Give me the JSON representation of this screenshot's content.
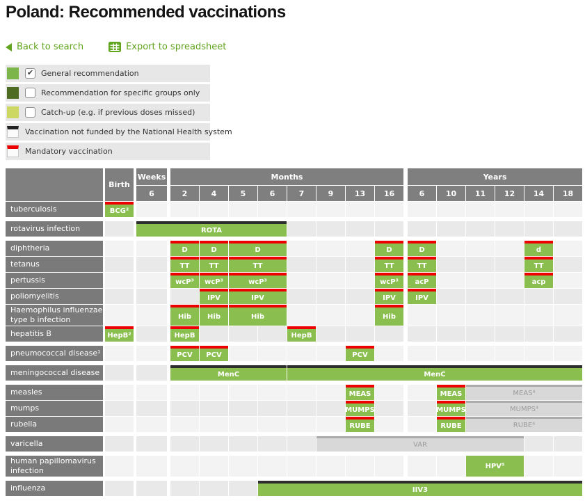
{
  "page": {
    "title": "Poland: Recommended vaccinations"
  },
  "toolbar": {
    "back_label": "Back to search",
    "export_label": "Export to spreadsheet"
  },
  "colors": {
    "link_green": "#61a51f",
    "bar_green": "#8abf4f",
    "legend_green": "#7cb64a",
    "legend_dark_green": "#4d6b21",
    "legend_light_green": "#cdd862",
    "mandatory_red": "#ec0000",
    "not_funded_black": "#2d2d2d",
    "catchup_gray_bar": "#d8d8d8",
    "header_gray": "#7f7f7f",
    "row_label_gray": "#7a7a7a"
  },
  "legend": [
    {
      "swatch": "green",
      "checkbox": true,
      "checked": true,
      "label": "General recommendation"
    },
    {
      "swatch": "dark-green",
      "checkbox": true,
      "checked": false,
      "label": "Recommendation for specific groups only"
    },
    {
      "swatch": "light-green",
      "checkbox": true,
      "checked": false,
      "label": "Catch-up (e.g. if previous doses missed)"
    },
    {
      "swatch": "top-black",
      "checkbox": false,
      "checked": false,
      "label": "Vaccination not funded by the National Health system"
    },
    {
      "swatch": "top-red",
      "checkbox": false,
      "checked": false,
      "label": "Mandatory vaccination"
    }
  ],
  "table": {
    "header": {
      "birth_label": "Birth",
      "groups": [
        {
          "label": "Weeks",
          "ticks": [
            "6"
          ]
        },
        {
          "label": "Months",
          "ticks": [
            "2",
            "4",
            "5",
            "6",
            "7",
            "9",
            "13",
            "16"
          ]
        },
        {
          "label": "Years",
          "ticks": [
            "6",
            "10",
            "11",
            "12",
            "14",
            "18"
          ]
        }
      ]
    },
    "columns": [
      "birth",
      "w6",
      "m2",
      "m4",
      "m5",
      "m6",
      "m7",
      "m9",
      "m13",
      "m16",
      "y6",
      "y10",
      "y11",
      "y12",
      "y14",
      "y18"
    ],
    "rows": [
      {
        "label": "tuberculosis",
        "shade": "light",
        "group_start": false,
        "tall": false,
        "bars": [
          {
            "from": "birth",
            "to": "birth",
            "text": "BCG²",
            "variant": "green",
            "top": "red"
          }
        ]
      },
      {
        "label": "rotavirus infection",
        "shade": "dark",
        "group_start": true,
        "tall": false,
        "bars": [
          {
            "from": "w6",
            "to": "m6",
            "text": "ROTA",
            "variant": "green",
            "top": "black"
          }
        ]
      },
      {
        "label": "diphtheria",
        "shade": "light",
        "group_start": true,
        "tall": false,
        "bars": [
          {
            "from": "m2",
            "to": "m2",
            "text": "D",
            "variant": "green",
            "top": "red"
          },
          {
            "from": "m4",
            "to": "m4",
            "text": "D",
            "variant": "green",
            "top": "red"
          },
          {
            "from": "m5",
            "to": "m6",
            "text": "D",
            "variant": "green",
            "top": "red"
          },
          {
            "from": "m16",
            "to": "m16",
            "text": "D",
            "variant": "green",
            "top": "red"
          },
          {
            "from": "y6",
            "to": "y6",
            "text": "D",
            "variant": "green",
            "top": "red"
          },
          {
            "from": "y14",
            "to": "y14",
            "text": "d",
            "variant": "green",
            "top": "red"
          }
        ]
      },
      {
        "label": "tetanus",
        "shade": "dark",
        "group_start": false,
        "tall": false,
        "bars": [
          {
            "from": "m2",
            "to": "m2",
            "text": "TT",
            "variant": "green",
            "top": "red"
          },
          {
            "from": "m4",
            "to": "m4",
            "text": "TT",
            "variant": "green",
            "top": "red"
          },
          {
            "from": "m5",
            "to": "m6",
            "text": "TT",
            "variant": "green",
            "top": "red"
          },
          {
            "from": "m16",
            "to": "m16",
            "text": "TT",
            "variant": "green",
            "top": "red"
          },
          {
            "from": "y6",
            "to": "y6",
            "text": "TT",
            "variant": "green",
            "top": "red"
          },
          {
            "from": "y14",
            "to": "y14",
            "text": "TT",
            "variant": "green",
            "top": "red"
          }
        ]
      },
      {
        "label": "pertussis",
        "shade": "light",
        "group_start": false,
        "tall": false,
        "bars": [
          {
            "from": "m2",
            "to": "m2",
            "text": "wcP³",
            "variant": "green",
            "top": "red"
          },
          {
            "from": "m4",
            "to": "m4",
            "text": "wcP³",
            "variant": "green",
            "top": "red"
          },
          {
            "from": "m5",
            "to": "m6",
            "text": "wcP³",
            "variant": "green",
            "top": "red"
          },
          {
            "from": "m16",
            "to": "m16",
            "text": "wcP³",
            "variant": "green",
            "top": "red"
          },
          {
            "from": "y6",
            "to": "y6",
            "text": "acP",
            "variant": "green",
            "top": "red"
          },
          {
            "from": "y14",
            "to": "y14",
            "text": "acp",
            "variant": "green",
            "top": "red"
          }
        ]
      },
      {
        "label": "poliomyelitis",
        "shade": "dark",
        "group_start": false,
        "tall": false,
        "bars": [
          {
            "from": "m4",
            "to": "m4",
            "text": "IPV",
            "variant": "green",
            "top": "red"
          },
          {
            "from": "m5",
            "to": "m6",
            "text": "IPV",
            "variant": "green",
            "top": "red"
          },
          {
            "from": "m16",
            "to": "m16",
            "text": "IPV",
            "variant": "green",
            "top": "red"
          },
          {
            "from": "y6",
            "to": "y6",
            "text": "IPV",
            "variant": "green",
            "top": "red"
          }
        ]
      },
      {
        "label": "Haemophilus influenzae type b infection",
        "shade": "light",
        "group_start": false,
        "tall": true,
        "bars": [
          {
            "from": "m2",
            "to": "m2",
            "text": "Hib",
            "variant": "green",
            "top": "red"
          },
          {
            "from": "m4",
            "to": "m4",
            "text": "Hib",
            "variant": "green",
            "top": "red"
          },
          {
            "from": "m5",
            "to": "m6",
            "text": "Hib",
            "variant": "green",
            "top": "red"
          },
          {
            "from": "m16",
            "to": "m16",
            "text": "Hib",
            "variant": "green",
            "top": "red"
          }
        ]
      },
      {
        "label": "hepatitis B",
        "shade": "dark",
        "group_start": false,
        "tall": false,
        "bars": [
          {
            "from": "birth",
            "to": "birth",
            "text": "HepB²",
            "variant": "green",
            "top": "red"
          },
          {
            "from": "m2",
            "to": "m2",
            "text": "HepB",
            "variant": "green",
            "top": "red"
          },
          {
            "from": "m7",
            "to": "m7",
            "text": "HepB",
            "variant": "green",
            "top": "red"
          }
        ]
      },
      {
        "label": "pneumococcal disease¹",
        "shade": "light",
        "group_start": true,
        "tall": false,
        "bars": [
          {
            "from": "m2",
            "to": "m2",
            "text": "PCV",
            "variant": "green",
            "top": "red"
          },
          {
            "from": "m4",
            "to": "m4",
            "text": "PCV",
            "variant": "green",
            "top": "red"
          },
          {
            "from": "m13",
            "to": "m13",
            "text": "PCV",
            "variant": "green",
            "top": "red"
          }
        ]
      },
      {
        "label": "meningococcal disease",
        "shade": "dark",
        "group_start": true,
        "tall": false,
        "bars": [
          {
            "from": "m2",
            "to": "m6",
            "text": "MenC",
            "variant": "green",
            "top": "black"
          },
          {
            "from": "m7",
            "to": "y18",
            "text": "MenC",
            "variant": "green",
            "top": "black"
          }
        ]
      },
      {
        "label": "measles",
        "shade": "light",
        "group_start": true,
        "tall": false,
        "bars": [
          {
            "from": "m13",
            "to": "m13",
            "text": "MEAS",
            "variant": "green",
            "top": "red"
          },
          {
            "from": "y10",
            "to": "y10",
            "text": "MEAS",
            "variant": "green",
            "top": "red"
          },
          {
            "from": "y11",
            "to": "y18",
            "text": "MEAS⁴",
            "variant": "gray",
            "top": "gray"
          }
        ]
      },
      {
        "label": "mumps",
        "shade": "dark",
        "group_start": false,
        "tall": false,
        "bars": [
          {
            "from": "m13",
            "to": "m13",
            "text": "MUMPS",
            "variant": "green",
            "top": "red"
          },
          {
            "from": "y10",
            "to": "y10",
            "text": "MUMPS",
            "variant": "green",
            "top": "red"
          },
          {
            "from": "y11",
            "to": "y18",
            "text": "MUMPS⁴",
            "variant": "gray",
            "top": "gray"
          }
        ]
      },
      {
        "label": "rubella",
        "shade": "light",
        "group_start": false,
        "tall": false,
        "bars": [
          {
            "from": "m13",
            "to": "m13",
            "text": "RUBE",
            "variant": "green",
            "top": "red"
          },
          {
            "from": "y10",
            "to": "y10",
            "text": "RUBE",
            "variant": "green",
            "top": "red"
          },
          {
            "from": "y11",
            "to": "y18",
            "text": "RUBE⁴",
            "variant": "gray",
            "top": "gray"
          }
        ]
      },
      {
        "label": "varicella",
        "shade": "dark",
        "group_start": true,
        "tall": false,
        "bars": [
          {
            "from": "m9",
            "to": "y12",
            "text": "VAR",
            "variant": "gray",
            "top": "gray"
          }
        ]
      },
      {
        "label": "human papillomavirus infection",
        "shade": "light",
        "group_start": true,
        "tall": true,
        "bars": [
          {
            "from": "y11",
            "to": "y12",
            "text": "HPV⁵",
            "variant": "green",
            "top": "none"
          }
        ]
      },
      {
        "label": "influenza",
        "shade": "dark",
        "group_start": true,
        "tall": false,
        "bars": [
          {
            "from": "m6",
            "to": "y18",
            "text": "IIV3",
            "variant": "green",
            "top": "black"
          }
        ]
      }
    ]
  }
}
